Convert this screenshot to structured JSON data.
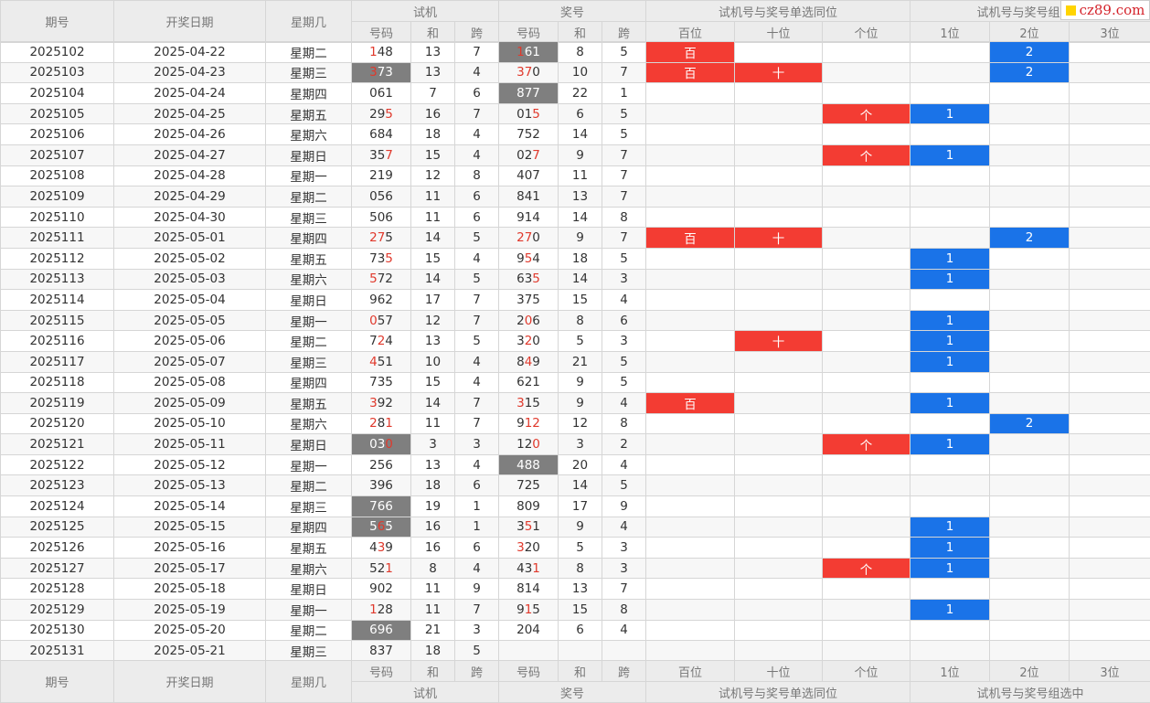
{
  "site_badge": "cz89.com",
  "header": {
    "period": "期号",
    "date": "开奖日期",
    "weekday": "星期几",
    "trial": "试机",
    "prize": "奖号",
    "single_match": "试机号与奖号单选同位",
    "group_match": "试机号与奖号组选中",
    "sub_number": "号码",
    "sub_sum": "和",
    "sub_span": "跨",
    "pos_hundred": "百位",
    "pos_ten": "十位",
    "pos_one": "个位",
    "grp_1": "1位",
    "grp_2": "2位",
    "grp_3": "3位"
  },
  "colors": {
    "highlight_gray": "#7f7f7f",
    "single_red": "#f33c33",
    "group_blue": "#1a73e8",
    "digit_red": "#e0392c"
  },
  "rows": [
    {
      "period": "2025102",
      "date": "2025-04-22",
      "weekday": "星期二",
      "trial": "148",
      "trial_red": [
        0
      ],
      "trial_hl": false,
      "tsum": "13",
      "tspan": "7",
      "prize": "161",
      "prize_red": [
        0
      ],
      "prize_hl": true,
      "psum": "8",
      "pspan": "5",
      "h": "百",
      "t": "",
      "o": "",
      "g1": "",
      "g2": "2",
      "g3": ""
    },
    {
      "period": "2025103",
      "date": "2025-04-23",
      "weekday": "星期三",
      "trial": "373",
      "trial_red": [
        0
      ],
      "trial_hl": true,
      "tsum": "13",
      "tspan": "4",
      "prize": "370",
      "prize_red": [
        0,
        1
      ],
      "prize_hl": false,
      "psum": "10",
      "pspan": "7",
      "h": "百",
      "t": "十",
      "o": "",
      "g1": "",
      "g2": "2",
      "g3": ""
    },
    {
      "period": "2025104",
      "date": "2025-04-24",
      "weekday": "星期四",
      "trial": "061",
      "trial_red": [],
      "trial_hl": false,
      "tsum": "7",
      "tspan": "6",
      "prize": "877",
      "prize_red": [],
      "prize_hl": true,
      "psum": "22",
      "pspan": "1",
      "h": "",
      "t": "",
      "o": "",
      "g1": "",
      "g2": "",
      "g3": ""
    },
    {
      "period": "2025105",
      "date": "2025-04-25",
      "weekday": "星期五",
      "trial": "295",
      "trial_red": [
        2
      ],
      "trial_hl": false,
      "tsum": "16",
      "tspan": "7",
      "prize": "015",
      "prize_red": [
        2
      ],
      "prize_hl": false,
      "psum": "6",
      "pspan": "5",
      "h": "",
      "t": "",
      "o": "个",
      "g1": "1",
      "g2": "",
      "g3": ""
    },
    {
      "period": "2025106",
      "date": "2025-04-26",
      "weekday": "星期六",
      "trial": "684",
      "trial_red": [],
      "trial_hl": false,
      "tsum": "18",
      "tspan": "4",
      "prize": "752",
      "prize_red": [],
      "prize_hl": false,
      "psum": "14",
      "pspan": "5",
      "h": "",
      "t": "",
      "o": "",
      "g1": "",
      "g2": "",
      "g3": ""
    },
    {
      "period": "2025107",
      "date": "2025-04-27",
      "weekday": "星期日",
      "trial": "357",
      "trial_red": [
        2
      ],
      "trial_hl": false,
      "tsum": "15",
      "tspan": "4",
      "prize": "027",
      "prize_red": [
        2
      ],
      "prize_hl": false,
      "psum": "9",
      "pspan": "7",
      "h": "",
      "t": "",
      "o": "个",
      "g1": "1",
      "g2": "",
      "g3": ""
    },
    {
      "period": "2025108",
      "date": "2025-04-28",
      "weekday": "星期一",
      "trial": "219",
      "trial_red": [],
      "trial_hl": false,
      "tsum": "12",
      "tspan": "8",
      "prize": "407",
      "prize_red": [],
      "prize_hl": false,
      "psum": "11",
      "pspan": "7",
      "h": "",
      "t": "",
      "o": "",
      "g1": "",
      "g2": "",
      "g3": ""
    },
    {
      "period": "2025109",
      "date": "2025-04-29",
      "weekday": "星期二",
      "trial": "056",
      "trial_red": [],
      "trial_hl": false,
      "tsum": "11",
      "tspan": "6",
      "prize": "841",
      "prize_red": [],
      "prize_hl": false,
      "psum": "13",
      "pspan": "7",
      "h": "",
      "t": "",
      "o": "",
      "g1": "",
      "g2": "",
      "g3": ""
    },
    {
      "period": "2025110",
      "date": "2025-04-30",
      "weekday": "星期三",
      "trial": "506",
      "trial_red": [],
      "trial_hl": false,
      "tsum": "11",
      "tspan": "6",
      "prize": "914",
      "prize_red": [],
      "prize_hl": false,
      "psum": "14",
      "pspan": "8",
      "h": "",
      "t": "",
      "o": "",
      "g1": "",
      "g2": "",
      "g3": ""
    },
    {
      "period": "2025111",
      "date": "2025-05-01",
      "weekday": "星期四",
      "trial": "275",
      "trial_red": [
        0,
        1
      ],
      "trial_hl": false,
      "tsum": "14",
      "tspan": "5",
      "prize": "270",
      "prize_red": [
        0,
        1
      ],
      "prize_hl": false,
      "psum": "9",
      "pspan": "7",
      "h": "百",
      "t": "十",
      "o": "",
      "g1": "",
      "g2": "2",
      "g3": ""
    },
    {
      "period": "2025112",
      "date": "2025-05-02",
      "weekday": "星期五",
      "trial": "735",
      "trial_red": [
        2
      ],
      "trial_hl": false,
      "tsum": "15",
      "tspan": "4",
      "prize": "954",
      "prize_red": [
        1
      ],
      "prize_hl": false,
      "psum": "18",
      "pspan": "5",
      "h": "",
      "t": "",
      "o": "",
      "g1": "1",
      "g2": "",
      "g3": ""
    },
    {
      "period": "2025113",
      "date": "2025-05-03",
      "weekday": "星期六",
      "trial": "572",
      "trial_red": [
        0
      ],
      "trial_hl": false,
      "tsum": "14",
      "tspan": "5",
      "prize": "635",
      "prize_red": [
        2
      ],
      "prize_hl": false,
      "psum": "14",
      "pspan": "3",
      "h": "",
      "t": "",
      "o": "",
      "g1": "1",
      "g2": "",
      "g3": ""
    },
    {
      "period": "2025114",
      "date": "2025-05-04",
      "weekday": "星期日",
      "trial": "962",
      "trial_red": [],
      "trial_hl": false,
      "tsum": "17",
      "tspan": "7",
      "prize": "375",
      "prize_red": [],
      "prize_hl": false,
      "psum": "15",
      "pspan": "4",
      "h": "",
      "t": "",
      "o": "",
      "g1": "",
      "g2": "",
      "g3": ""
    },
    {
      "period": "2025115",
      "date": "2025-05-05",
      "weekday": "星期一",
      "trial": "057",
      "trial_red": [
        0
      ],
      "trial_hl": false,
      "tsum": "12",
      "tspan": "7",
      "prize": "206",
      "prize_red": [
        1
      ],
      "prize_hl": false,
      "psum": "8",
      "pspan": "6",
      "h": "",
      "t": "",
      "o": "",
      "g1": "1",
      "g2": "",
      "g3": ""
    },
    {
      "period": "2025116",
      "date": "2025-05-06",
      "weekday": "星期二",
      "trial": "724",
      "trial_red": [
        1
      ],
      "trial_hl": false,
      "tsum": "13",
      "tspan": "5",
      "prize": "320",
      "prize_red": [
        1
      ],
      "prize_hl": false,
      "psum": "5",
      "pspan": "3",
      "h": "",
      "t": "十",
      "o": "",
      "g1": "1",
      "g2": "",
      "g3": ""
    },
    {
      "period": "2025117",
      "date": "2025-05-07",
      "weekday": "星期三",
      "trial": "451",
      "trial_red": [
        0
      ],
      "trial_hl": false,
      "tsum": "10",
      "tspan": "4",
      "prize": "849",
      "prize_red": [
        1
      ],
      "prize_hl": false,
      "psum": "21",
      "pspan": "5",
      "h": "",
      "t": "",
      "o": "",
      "g1": "1",
      "g2": "",
      "g3": ""
    },
    {
      "period": "2025118",
      "date": "2025-05-08",
      "weekday": "星期四",
      "trial": "735",
      "trial_red": [],
      "trial_hl": false,
      "tsum": "15",
      "tspan": "4",
      "prize": "621",
      "prize_red": [],
      "prize_hl": false,
      "psum": "9",
      "pspan": "5",
      "h": "",
      "t": "",
      "o": "",
      "g1": "",
      "g2": "",
      "g3": ""
    },
    {
      "period": "2025119",
      "date": "2025-05-09",
      "weekday": "星期五",
      "trial": "392",
      "trial_red": [
        0
      ],
      "trial_hl": false,
      "tsum": "14",
      "tspan": "7",
      "prize": "315",
      "prize_red": [
        0
      ],
      "prize_hl": false,
      "psum": "9",
      "pspan": "4",
      "h": "百",
      "t": "",
      "o": "",
      "g1": "1",
      "g2": "",
      "g3": ""
    },
    {
      "period": "2025120",
      "date": "2025-05-10",
      "weekday": "星期六",
      "trial": "281",
      "trial_red": [
        0,
        2
      ],
      "trial_hl": false,
      "tsum": "11",
      "tspan": "7",
      "prize": "912",
      "prize_red": [
        1,
        2
      ],
      "prize_hl": false,
      "psum": "12",
      "pspan": "8",
      "h": "",
      "t": "",
      "o": "",
      "g1": "",
      "g2": "2",
      "g3": ""
    },
    {
      "period": "2025121",
      "date": "2025-05-11",
      "weekday": "星期日",
      "trial": "030",
      "trial_red": [
        2
      ],
      "trial_hl": true,
      "tsum": "3",
      "tspan": "3",
      "prize": "120",
      "prize_red": [
        2
      ],
      "prize_hl": false,
      "psum": "3",
      "pspan": "2",
      "h": "",
      "t": "",
      "o": "个",
      "g1": "1",
      "g2": "",
      "g3": ""
    },
    {
      "period": "2025122",
      "date": "2025-05-12",
      "weekday": "星期一",
      "trial": "256",
      "trial_red": [],
      "trial_hl": false,
      "tsum": "13",
      "tspan": "4",
      "prize": "488",
      "prize_red": [],
      "prize_hl": true,
      "psum": "20",
      "pspan": "4",
      "h": "",
      "t": "",
      "o": "",
      "g1": "",
      "g2": "",
      "g3": ""
    },
    {
      "period": "2025123",
      "date": "2025-05-13",
      "weekday": "星期二",
      "trial": "396",
      "trial_red": [],
      "trial_hl": false,
      "tsum": "18",
      "tspan": "6",
      "prize": "725",
      "prize_red": [],
      "prize_hl": false,
      "psum": "14",
      "pspan": "5",
      "h": "",
      "t": "",
      "o": "",
      "g1": "",
      "g2": "",
      "g3": ""
    },
    {
      "period": "2025124",
      "date": "2025-05-14",
      "weekday": "星期三",
      "trial": "766",
      "trial_red": [],
      "trial_hl": true,
      "tsum": "19",
      "tspan": "1",
      "prize": "809",
      "prize_red": [],
      "prize_hl": false,
      "psum": "17",
      "pspan": "9",
      "h": "",
      "t": "",
      "o": "",
      "g1": "",
      "g2": "",
      "g3": ""
    },
    {
      "period": "2025125",
      "date": "2025-05-15",
      "weekday": "星期四",
      "trial": "565",
      "trial_red": [
        1
      ],
      "trial_hl": true,
      "tsum": "16",
      "tspan": "1",
      "prize": "351",
      "prize_red": [
        1
      ],
      "prize_hl": false,
      "psum": "9",
      "pspan": "4",
      "h": "",
      "t": "",
      "o": "",
      "g1": "1",
      "g2": "",
      "g3": ""
    },
    {
      "period": "2025126",
      "date": "2025-05-16",
      "weekday": "星期五",
      "trial": "439",
      "trial_red": [
        1
      ],
      "trial_hl": false,
      "tsum": "16",
      "tspan": "6",
      "prize": "320",
      "prize_red": [
        0
      ],
      "prize_hl": false,
      "psum": "5",
      "pspan": "3",
      "h": "",
      "t": "",
      "o": "",
      "g1": "1",
      "g2": "",
      "g3": ""
    },
    {
      "period": "2025127",
      "date": "2025-05-17",
      "weekday": "星期六",
      "trial": "521",
      "trial_red": [
        2
      ],
      "trial_hl": false,
      "tsum": "8",
      "tspan": "4",
      "prize": "431",
      "prize_red": [
        2
      ],
      "prize_hl": false,
      "psum": "8",
      "pspan": "3",
      "h": "",
      "t": "",
      "o": "个",
      "g1": "1",
      "g2": "",
      "g3": ""
    },
    {
      "period": "2025128",
      "date": "2025-05-18",
      "weekday": "星期日",
      "trial": "902",
      "trial_red": [],
      "trial_hl": false,
      "tsum": "11",
      "tspan": "9",
      "prize": "814",
      "prize_red": [],
      "prize_hl": false,
      "psum": "13",
      "pspan": "7",
      "h": "",
      "t": "",
      "o": "",
      "g1": "",
      "g2": "",
      "g3": ""
    },
    {
      "period": "2025129",
      "date": "2025-05-19",
      "weekday": "星期一",
      "trial": "128",
      "trial_red": [
        0
      ],
      "trial_hl": false,
      "tsum": "11",
      "tspan": "7",
      "prize": "915",
      "prize_red": [
        1
      ],
      "prize_hl": false,
      "psum": "15",
      "pspan": "8",
      "h": "",
      "t": "",
      "o": "",
      "g1": "1",
      "g2": "",
      "g3": ""
    },
    {
      "period": "2025130",
      "date": "2025-05-20",
      "weekday": "星期二",
      "trial": "696",
      "trial_red": [],
      "trial_hl": true,
      "tsum": "21",
      "tspan": "3",
      "prize": "204",
      "prize_red": [],
      "prize_hl": false,
      "psum": "6",
      "pspan": "4",
      "h": "",
      "t": "",
      "o": "",
      "g1": "",
      "g2": "",
      "g3": ""
    },
    {
      "period": "2025131",
      "date": "2025-05-21",
      "weekday": "星期三",
      "trial": "837",
      "trial_red": [],
      "trial_hl": false,
      "tsum": "18",
      "tspan": "5",
      "prize": "",
      "prize_red": [],
      "prize_hl": false,
      "psum": "",
      "pspan": "",
      "h": "",
      "t": "",
      "o": "",
      "g1": "",
      "g2": "",
      "g3": ""
    }
  ]
}
